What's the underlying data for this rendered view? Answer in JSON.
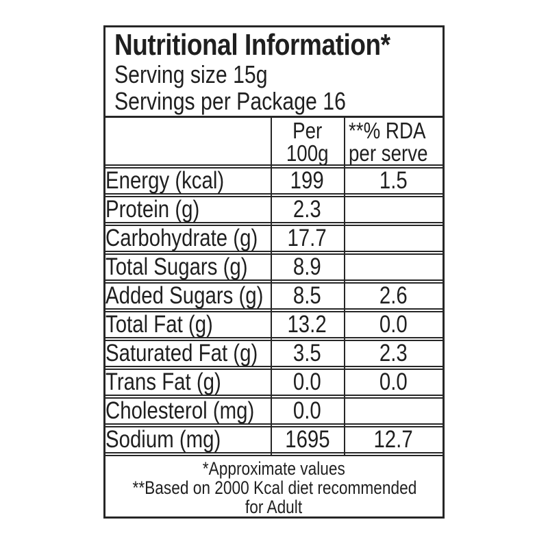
{
  "label": {
    "title": "Nutritional Information*",
    "serving_size": "Serving size 15g",
    "servings_per_package": "Servings per Package 16",
    "columns": {
      "per_100g_line1": "Per",
      "per_100g_line2": "100g",
      "rda_line1": "**% RDA",
      "rda_line2": "per serve"
    },
    "rows": [
      {
        "label": "Energy (kcal)",
        "per100g": "199",
        "rda": "1.5"
      },
      {
        "label": "Protein (g)",
        "per100g": "2.3",
        "rda": ""
      },
      {
        "label": "Carbohydrate (g)",
        "per100g": "17.7",
        "rda": ""
      },
      {
        "label": "Total Sugars (g)",
        "per100g": "8.9",
        "rda": ""
      },
      {
        "label": "Added Sugars (g)",
        "per100g": "8.5",
        "rda": "2.6"
      },
      {
        "label": "Total Fat (g)",
        "per100g": "13.2",
        "rda": "0.0"
      },
      {
        "label": "Saturated Fat (g)",
        "per100g": "3.5",
        "rda": "2.3"
      },
      {
        "label": "Trans Fat (g)",
        "per100g": "0.0",
        "rda": "0.0"
      },
      {
        "label": "Cholesterol (mg)",
        "per100g": "0.0",
        "rda": ""
      },
      {
        "label": "Sodium (mg)",
        "per100g": "1695",
        "rda": "12.7"
      }
    ],
    "footnotes": [
      "*Approximate values",
      "**Based on 2000 Kcal diet recommended",
      "for Adult"
    ],
    "colors": {
      "ink": "#1f1f1f",
      "line": "#262626",
      "background": "#ffffff"
    }
  }
}
